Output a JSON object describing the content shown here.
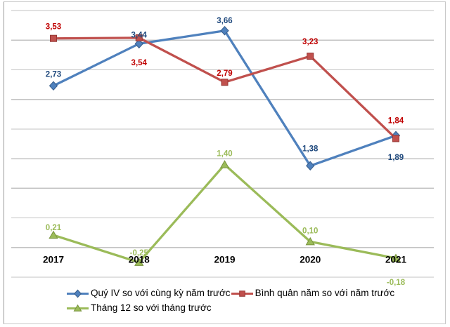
{
  "chart_data": {
    "type": "line",
    "title": "",
    "categories": [
      "2017",
      "2018",
      "2019",
      "2020",
      "2021"
    ],
    "series": [
      {
        "name": "Quý IV so với cùng kỳ năm trước",
        "color": "#4F81BD",
        "marker": "diamond",
        "marker_stroke": "#385D8A",
        "label_color": "#1F497D",
        "values": [
          2.73,
          3.44,
          3.66,
          1.38,
          1.89
        ],
        "labels": [
          "2,73",
          "3,44",
          "3,66",
          "1,38",
          "1,89"
        ],
        "label_dy": [
          -13,
          -9,
          -10.5,
          -21,
          35
        ]
      },
      {
        "name": "Bình quân năm so với năm trước",
        "color": "#C0504D",
        "marker": "square",
        "marker_stroke": "#953734",
        "label_color": "#C00000",
        "values": [
          3.53,
          3.54,
          2.79,
          3.23,
          1.84
        ],
        "labels": [
          "3,53",
          "3,54",
          "2,79",
          "3,23",
          "1,84"
        ],
        "label_dy": [
          -13,
          39,
          -9,
          -17,
          -22
        ]
      },
      {
        "name": "Tháng 12 so với tháng trước",
        "color": "#9BBB59",
        "marker": "triangle",
        "marker_stroke": "#77933C",
        "label_color": "#9BBB59",
        "values": [
          0.21,
          -0.25,
          1.4,
          0.1,
          -0.18
        ],
        "labels": [
          "0,21",
          "-0,25",
          "1,40",
          "0,10",
          "-0,18"
        ],
        "label_dy": [
          -7,
          -10,
          -12,
          -12,
          38
        ]
      }
    ],
    "ylim": [
      -0.5,
      4.0
    ],
    "gridline_step": 0.5,
    "grid": "horizontal-only",
    "y_axis_labels_visible": false,
    "legend_position": "bottom",
    "decimal_separator": ","
  },
  "colors": {
    "gridline": "#c3c3c3",
    "category_label": "#000000",
    "background": "#ffffff",
    "border": "#c9c9c9"
  }
}
